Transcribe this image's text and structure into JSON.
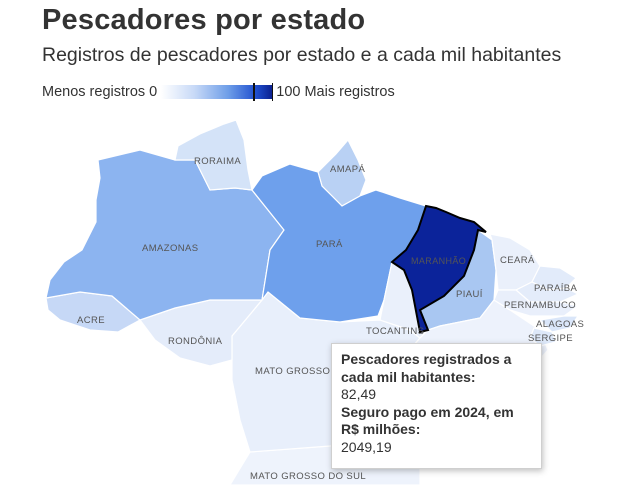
{
  "header": {
    "title": "Pescadores por estado",
    "subtitle": "Registros de pescadores por estado e a cada mil habitantes"
  },
  "legend": {
    "min_label": "Menos registros 0",
    "max_label": "100 Mais registros",
    "min_value": 0,
    "max_value": 100,
    "color_low": "#ffffff",
    "color_high": "#0a1e8c"
  },
  "map": {
    "highlighted_state": "MARANHÃO",
    "states": [
      {
        "label": "RORAIMA"
      },
      {
        "label": "AMAPÁ"
      },
      {
        "label": "AMAZONAS"
      },
      {
        "label": "PARÁ"
      },
      {
        "label": "MARANHÃO"
      },
      {
        "label": "CEARÁ"
      },
      {
        "label": "PIAUÍ"
      },
      {
        "label": "PARAÍBA"
      },
      {
        "label": "PERNAMBUCO"
      },
      {
        "label": "ALAGOAS"
      },
      {
        "label": "SERGIPE"
      },
      {
        "label": "ACRE"
      },
      {
        "label": "RONDÔNIA"
      },
      {
        "label": "TOCANTINS"
      },
      {
        "label": "MATO GROSSO"
      },
      {
        "label": "MATO GROSSO DO SUL"
      }
    ]
  },
  "tooltip": {
    "label1": "Pescadores registrados a cada mil habitantes:",
    "value1": "82,49",
    "label2": "Seguro pago em 2024, em R$ milhões:",
    "value2": "2049,19"
  }
}
